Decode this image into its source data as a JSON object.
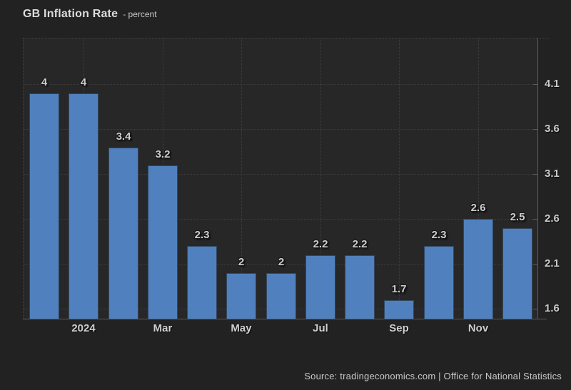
{
  "header": {
    "title": "GB Inflation Rate",
    "subtitle": "- percent"
  },
  "footer": {
    "source": "Source: tradingeconomics.com | Office for National Statistics"
  },
  "colors": {
    "background": "#222222",
    "plot_background": "#272727",
    "grid": "#3e3e3e",
    "axis": "#5c5c5c",
    "bar": "#5081be",
    "text": "#cccccc"
  },
  "chart_data": {
    "type": "bar",
    "title": "GB Inflation Rate",
    "ylabel": "percent",
    "values": [
      4,
      4,
      3.4,
      3.2,
      2.3,
      2,
      2,
      2.2,
      2.2,
      1.7,
      2.3,
      2.6,
      2.5
    ],
    "bar_value_labels": [
      "4",
      "4",
      "3.4",
      "3.2",
      "2.3",
      "2",
      "2",
      "2.2",
      "2.2",
      "1.7",
      "2.3",
      "2.6",
      "2.5"
    ],
    "x_tick_labels": [
      "2024",
      "Mar",
      "May",
      "Jul",
      "Sep",
      "Nov"
    ],
    "x_tick_bar_indices": [
      1,
      3,
      5,
      7,
      9,
      11
    ],
    "y_ticks": [
      4.1,
      3.6,
      3.1,
      2.6,
      2.1,
      1.6
    ],
    "ylim": [
      1.49,
      4.62
    ],
    "grid": true,
    "legend": false,
    "y_axis_position": "right"
  }
}
